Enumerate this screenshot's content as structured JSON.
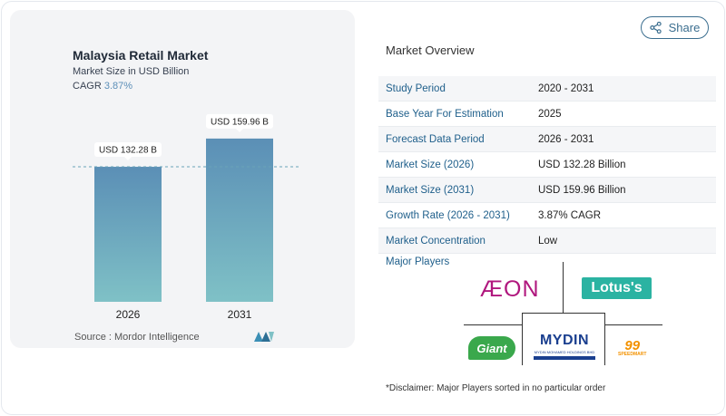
{
  "chart": {
    "title": "Malaysia Retail Market",
    "subtitle": "Market Size in USD Billion",
    "cagr_label": "CAGR",
    "cagr_value": "3.87%",
    "source": "Source :  Mordor Intelligence"
  },
  "chart_data": {
    "type": "bar",
    "title": "Malaysia Retail Market",
    "subtitle": "Market Size in USD Billion",
    "categories": [
      "2026",
      "2031"
    ],
    "values": [
      132.28,
      159.96
    ],
    "data_labels": [
      "USD 132.28 B",
      "USD 159.96 B"
    ],
    "ylim": [
      0,
      170
    ],
    "grid": false,
    "reference_line": "dashed line at 2026 value"
  },
  "share": {
    "label": "Share",
    "icon": "share-icon"
  },
  "overview": {
    "title": "Market Overview",
    "rows": [
      {
        "label": "Study Period",
        "value": "2020 - 2031"
      },
      {
        "label": "Base Year For Estimation",
        "value": "2025"
      },
      {
        "label": "Forecast Data Period",
        "value": "2026 - 2031"
      },
      {
        "label": "Market Size (2026)",
        "value": "USD 132.28 Billion"
      },
      {
        "label": "Market Size (2031)",
        "value": "USD 159.96 Billion"
      },
      {
        "label": "Growth Rate (2026 - 2031)",
        "value": "3.87% CAGR"
      },
      {
        "label": "Market Concentration",
        "value": "Low"
      }
    ]
  },
  "players": {
    "title": "Major Players",
    "logos": {
      "aeon": "ÆON",
      "lotus": "Lotus's",
      "mydin": "MYDIN",
      "mydin_sub": "MYDIN MOHAMED HOLDINGS BHD",
      "giant": "Giant",
      "ninety_nine": "99",
      "ninety_nine_sub": "SPEEDMART"
    }
  },
  "disclaimer": "*Disclaimer: Major Players sorted in no particular order",
  "colors": {
    "bar_top": "#5b8fb6",
    "bar_bottom": "#7fc1c6",
    "accent": "#1f5f8b",
    "lotus": "#2bb3a2",
    "giant": "#3aa84c",
    "ninety_nine": "#f39200"
  }
}
